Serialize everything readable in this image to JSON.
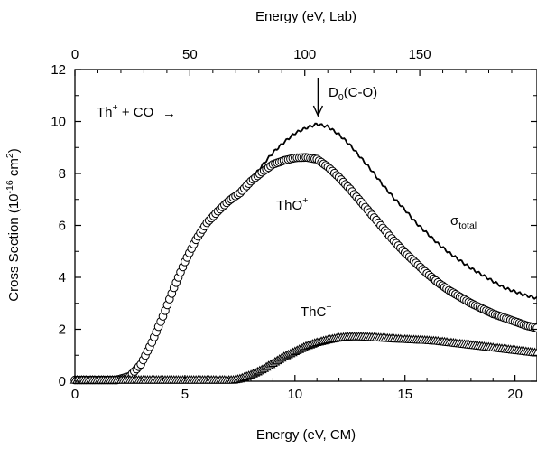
{
  "chart_data": {
    "type": "scatter",
    "xlabel": "Energy (eV, CM)",
    "x2label": "Energy (eV, Lab)",
    "ylabel": "Cross Section (10",
    "ylabel_sup": "-16",
    "ylabel_unit": " cm",
    "ylabel_unit_sup": "2",
    "ylabel_close": ")",
    "xlim": [
      0,
      21
    ],
    "ylim": [
      0,
      12
    ],
    "x2lim": [
      0,
      201
    ],
    "x_ticks": [
      0,
      5,
      10,
      15,
      20
    ],
    "y_ticks": [
      0,
      2,
      4,
      6,
      8,
      10,
      12
    ],
    "x2_ticks": [
      0,
      50,
      100,
      150
    ],
    "grid": false,
    "series": [
      {
        "name": "σtotal",
        "style": "line",
        "color": "#000000",
        "points": [
          [
            0,
            0.05
          ],
          [
            2.0,
            0.05
          ],
          [
            2.5,
            0.2
          ],
          [
            3,
            0.65
          ],
          [
            3.5,
            1.5
          ],
          [
            4,
            2.5
          ],
          [
            4.5,
            3.6
          ],
          [
            5,
            4.6
          ],
          [
            5.5,
            5.45
          ],
          [
            6,
            6.1
          ],
          [
            6.5,
            6.55
          ],
          [
            7,
            6.95
          ],
          [
            7.5,
            7.25
          ],
          [
            8,
            7.75
          ],
          [
            8.5,
            8.3
          ],
          [
            9,
            8.8
          ],
          [
            9.5,
            9.2
          ],
          [
            10,
            9.55
          ],
          [
            10.5,
            9.75
          ],
          [
            11,
            9.9
          ],
          [
            11.5,
            9.8
          ],
          [
            12,
            9.5
          ],
          [
            12.5,
            9.1
          ],
          [
            13,
            8.6
          ],
          [
            13.5,
            8.1
          ],
          [
            14,
            7.55
          ],
          [
            14.5,
            7.05
          ],
          [
            15,
            6.6
          ],
          [
            15.5,
            6.1
          ],
          [
            16,
            5.7
          ],
          [
            16.5,
            5.3
          ],
          [
            17,
            4.95
          ],
          [
            17.5,
            4.65
          ],
          [
            18,
            4.35
          ],
          [
            18.5,
            4.1
          ],
          [
            19,
            3.85
          ],
          [
            19.5,
            3.6
          ],
          [
            20,
            3.45
          ],
          [
            20.5,
            3.3
          ],
          [
            21,
            3.2
          ]
        ]
      },
      {
        "name": "ThO+",
        "style": "circle",
        "color": "#000000",
        "points": [
          [
            0,
            0.05
          ],
          [
            1.9,
            0.05
          ],
          [
            2.5,
            0.2
          ],
          [
            3,
            0.65
          ],
          [
            3.5,
            1.5
          ],
          [
            4,
            2.5
          ],
          [
            4.5,
            3.6
          ],
          [
            5,
            4.6
          ],
          [
            5.5,
            5.45
          ],
          [
            6,
            6.1
          ],
          [
            6.5,
            6.55
          ],
          [
            7,
            6.95
          ],
          [
            7.5,
            7.25
          ],
          [
            8,
            7.7
          ],
          [
            8.5,
            8.05
          ],
          [
            9,
            8.35
          ],
          [
            9.5,
            8.5
          ],
          [
            10,
            8.6
          ],
          [
            10.5,
            8.62
          ],
          [
            11,
            8.55
          ],
          [
            11.5,
            8.25
          ],
          [
            12,
            7.85
          ],
          [
            12.5,
            7.4
          ],
          [
            13,
            6.9
          ],
          [
            13.5,
            6.4
          ],
          [
            14,
            5.9
          ],
          [
            14.5,
            5.4
          ],
          [
            15,
            4.95
          ],
          [
            15.5,
            4.55
          ],
          [
            16,
            4.15
          ],
          [
            16.5,
            3.8
          ],
          [
            17,
            3.5
          ],
          [
            17.5,
            3.25
          ],
          [
            18,
            3.0
          ],
          [
            18.5,
            2.8
          ],
          [
            19,
            2.6
          ],
          [
            19.5,
            2.45
          ],
          [
            20,
            2.3
          ],
          [
            20.5,
            2.15
          ],
          [
            21,
            2.05
          ]
        ]
      },
      {
        "name": "ThC+",
        "style": "triangle",
        "color": "#000000",
        "points": [
          [
            0,
            0.05
          ],
          [
            7.2,
            0.05
          ],
          [
            7.5,
            0.1
          ],
          [
            8,
            0.25
          ],
          [
            8.5,
            0.45
          ],
          [
            9,
            0.7
          ],
          [
            9.5,
            0.95
          ],
          [
            10,
            1.15
          ],
          [
            10.5,
            1.35
          ],
          [
            11,
            1.5
          ],
          [
            11.5,
            1.6
          ],
          [
            12,
            1.68
          ],
          [
            12.5,
            1.72
          ],
          [
            13,
            1.72
          ],
          [
            13.5,
            1.7
          ],
          [
            14,
            1.67
          ],
          [
            14.5,
            1.64
          ],
          [
            15,
            1.62
          ],
          [
            15.5,
            1.6
          ],
          [
            16,
            1.58
          ],
          [
            16.5,
            1.55
          ],
          [
            17,
            1.5
          ],
          [
            17.5,
            1.45
          ],
          [
            18,
            1.4
          ],
          [
            18.5,
            1.35
          ],
          [
            19,
            1.3
          ],
          [
            19.5,
            1.25
          ],
          [
            20,
            1.2
          ],
          [
            20.5,
            1.15
          ],
          [
            21,
            1.1
          ]
        ]
      }
    ],
    "annotations": {
      "reaction_pre": "Th",
      "reaction_sup": "+",
      "reaction_post": " + CO",
      "reaction_arrow": "→",
      "d0_main": "D",
      "d0_sub": "0",
      "d0_tail": "(C-O)",
      "d0_x": 11.05,
      "sigma_symbol": "σ",
      "sigma_sub": "total",
      "tho_main": "ThO",
      "tho_sup": "+",
      "thc_main": "ThC",
      "thc_sup": "+"
    }
  }
}
